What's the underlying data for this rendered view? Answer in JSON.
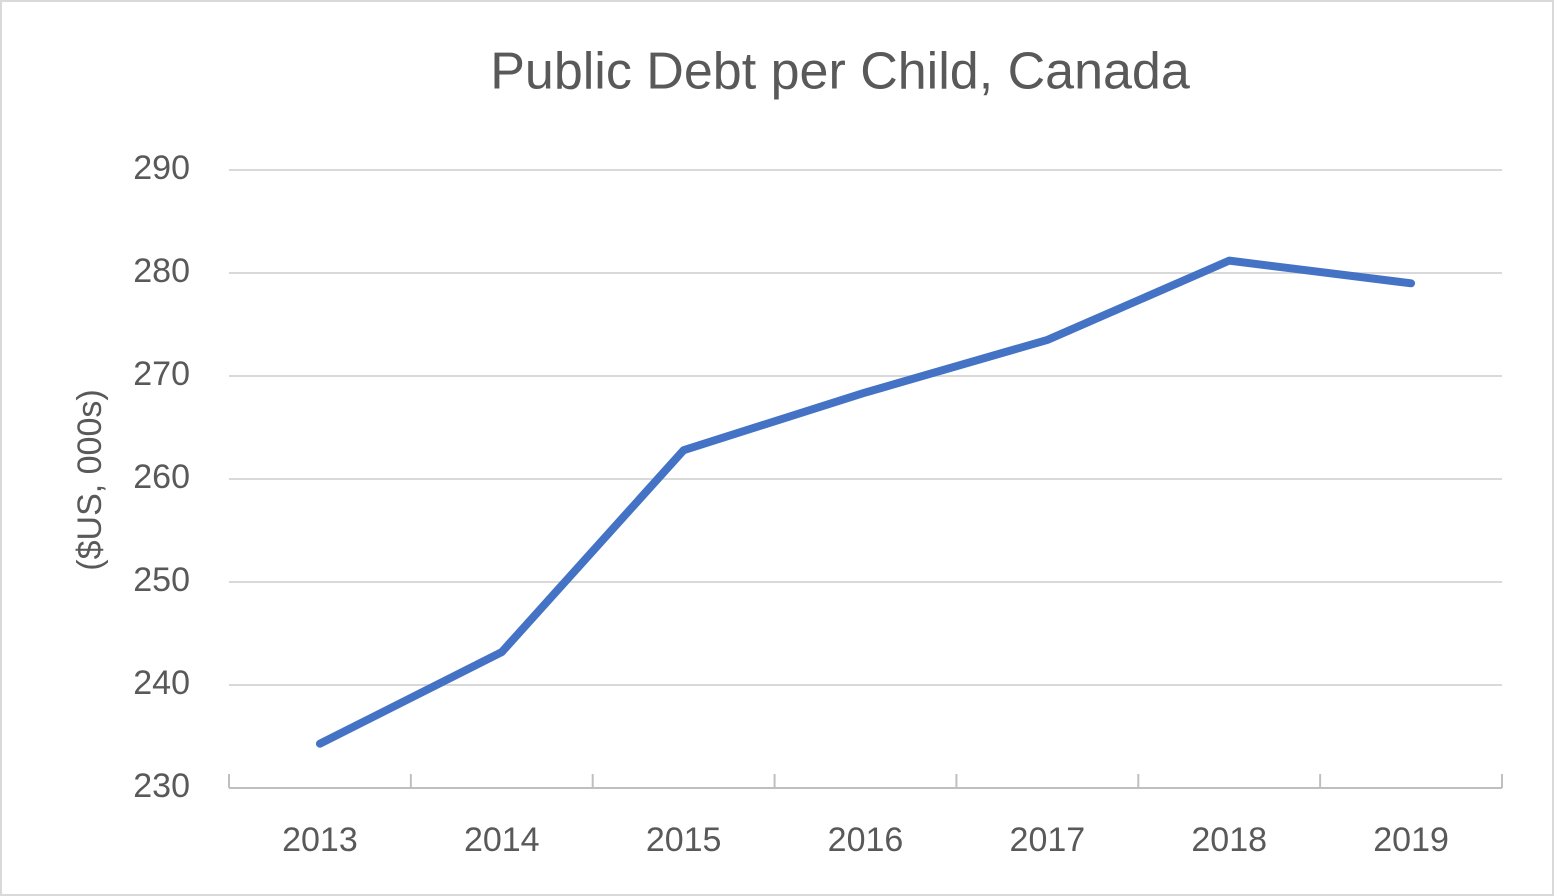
{
  "chart_data": {
    "type": "line",
    "title": "Public Debt per Child, Canada",
    "y_label": "($US, 000s)",
    "categories": [
      "2013",
      "2014",
      "2015",
      "2016",
      "2017",
      "2018",
      "2019"
    ],
    "values": [
      234.3,
      243.2,
      262.8,
      268.4,
      273.5,
      281.2,
      279.0
    ],
    "color": "#4472c4",
    "ylim": [
      230,
      290
    ],
    "yticks": [
      230,
      240,
      250,
      260,
      270,
      280,
      290
    ],
    "grid": true
  }
}
